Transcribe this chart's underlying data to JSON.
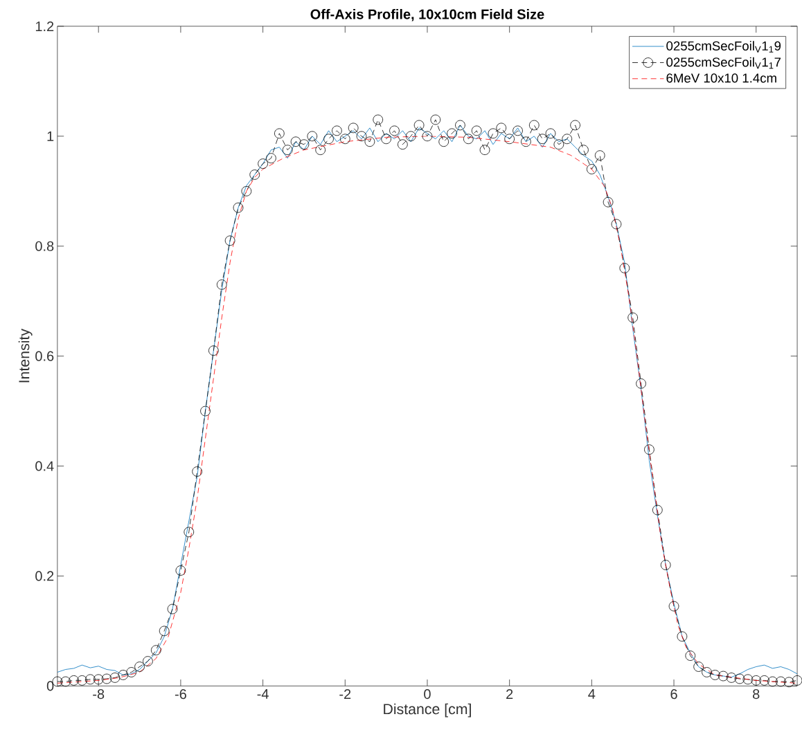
{
  "chart_data": {
    "type": "line",
    "title": "Off-Axis Profile, 10x10cm Field Size",
    "xlabel": "Distance [cm]",
    "ylabel": "Intensity",
    "xlim": [
      -9,
      9
    ],
    "ylim": [
      0,
      1.2
    ],
    "xticks": [
      -8,
      -6,
      -4,
      -2,
      0,
      2,
      4,
      6,
      8
    ],
    "yticks": [
      0,
      0.2,
      0.4,
      0.6,
      0.8,
      1,
      1.2
    ],
    "grid": false,
    "legend": "top right",
    "series": [
      {
        "name": "0255cmSecFoil$_{V}$1$_{1}$9",
        "color": "#0072bd",
        "marker": "none",
        "line_style": "solid",
        "x": [
          -9.0,
          -8.8,
          -8.6,
          -8.4,
          -8.2,
          -8.0,
          -7.8,
          -7.6,
          -7.4,
          -7.2,
          -7.0,
          -6.8,
          -6.6,
          -6.4,
          -6.2,
          -6.0,
          -5.8,
          -5.6,
          -5.4,
          -5.2,
          -5.0,
          -4.8,
          -4.6,
          -4.4,
          -4.2,
          -4.0,
          -3.8,
          -3.6,
          -3.4,
          -3.2,
          -3.0,
          -2.8,
          -2.6,
          -2.4,
          -2.2,
          -2.0,
          -1.8,
          -1.6,
          -1.4,
          -1.2,
          -1.0,
          -0.8,
          -0.6,
          -0.4,
          -0.2,
          0.0,
          0.2,
          0.4,
          0.6,
          0.8,
          1.0,
          1.2,
          1.4,
          1.6,
          1.8,
          2.0,
          2.2,
          2.4,
          2.6,
          2.8,
          3.0,
          3.2,
          3.4,
          3.6,
          3.8,
          4.0,
          4.2,
          4.4,
          4.6,
          4.8,
          5.0,
          5.2,
          5.4,
          5.6,
          5.8,
          6.0,
          6.2,
          6.4,
          6.6,
          6.8,
          7.0,
          7.2,
          7.4,
          7.6,
          7.8,
          8.0,
          8.2,
          8.4,
          8.6,
          8.8,
          9.0
        ],
        "values": [
          0.025,
          0.03,
          0.032,
          0.038,
          0.033,
          0.036,
          0.03,
          0.028,
          0.02,
          0.022,
          0.03,
          0.045,
          0.06,
          0.09,
          0.14,
          0.22,
          0.3,
          0.38,
          0.5,
          0.61,
          0.72,
          0.81,
          0.87,
          0.91,
          0.93,
          0.95,
          0.975,
          0.98,
          0.96,
          0.99,
          0.975,
          1.0,
          0.985,
          1.01,
          0.99,
          1.0,
          1.01,
          0.995,
          1.015,
          0.99,
          1.005,
          0.995,
          1.01,
          0.99,
          1.015,
          1.005,
          0.995,
          1.01,
          0.99,
          1.02,
          1.0,
          0.995,
          1.01,
          0.985,
          1.005,
          0.995,
          1.015,
          0.99,
          1.0,
          0.98,
          1.005,
          0.99,
          0.995,
          0.98,
          0.965,
          0.955,
          0.93,
          0.89,
          0.84,
          0.77,
          0.65,
          0.54,
          0.41,
          0.31,
          0.22,
          0.15,
          0.09,
          0.06,
          0.035,
          0.025,
          0.02,
          0.018,
          0.016,
          0.022,
          0.03,
          0.035,
          0.038,
          0.032,
          0.035,
          0.03,
          0.022
        ]
      },
      {
        "name": "0255cmSecFoil$_{V}$1$_{1}$7",
        "color": "#000000",
        "marker": "circle",
        "line_style": "dashed",
        "x": [
          -9.0,
          -8.8,
          -8.6,
          -8.4,
          -8.2,
          -8.0,
          -7.8,
          -7.6,
          -7.4,
          -7.2,
          -7.0,
          -6.8,
          -6.6,
          -6.4,
          -6.2,
          -6.0,
          -5.8,
          -5.6,
          -5.4,
          -5.2,
          -5.0,
          -4.8,
          -4.6,
          -4.4,
          -4.2,
          -4.0,
          -3.8,
          -3.6,
          -3.4,
          -3.2,
          -3.0,
          -2.8,
          -2.6,
          -2.4,
          -2.2,
          -2.0,
          -1.8,
          -1.6,
          -1.4,
          -1.2,
          -1.0,
          -0.8,
          -0.6,
          -0.4,
          -0.2,
          0.0,
          0.2,
          0.4,
          0.6,
          0.8,
          1.0,
          1.2,
          1.4,
          1.6,
          1.8,
          2.0,
          2.2,
          2.4,
          2.6,
          2.8,
          3.0,
          3.2,
          3.4,
          3.6,
          3.8,
          4.0,
          4.2,
          4.4,
          4.6,
          4.8,
          5.0,
          5.2,
          5.4,
          5.6,
          5.8,
          6.0,
          6.2,
          6.4,
          6.6,
          6.8,
          7.0,
          7.2,
          7.4,
          7.6,
          7.8,
          8.0,
          8.2,
          8.4,
          8.6,
          8.8,
          9.0
        ],
        "values": [
          0.008,
          0.008,
          0.01,
          0.01,
          0.012,
          0.012,
          0.013,
          0.015,
          0.02,
          0.025,
          0.035,
          0.045,
          0.065,
          0.1,
          0.14,
          0.21,
          0.28,
          0.39,
          0.5,
          0.61,
          0.73,
          0.81,
          0.87,
          0.9,
          0.93,
          0.95,
          0.96,
          1.005,
          0.975,
          0.99,
          0.985,
          1.0,
          0.975,
          0.995,
          1.01,
          0.995,
          1.015,
          1.0,
          0.99,
          1.03,
          0.995,
          1.01,
          0.985,
          1.0,
          1.02,
          1.0,
          1.03,
          0.99,
          1.005,
          1.02,
          0.995,
          1.01,
          0.975,
          1.005,
          1.015,
          0.995,
          1.01,
          0.99,
          1.02,
          0.995,
          1.005,
          0.985,
          0.995,
          1.02,
          0.975,
          0.94,
          0.965,
          0.88,
          0.84,
          0.76,
          0.67,
          0.55,
          0.43,
          0.32,
          0.22,
          0.145,
          0.09,
          0.055,
          0.035,
          0.025,
          0.02,
          0.018,
          0.015,
          0.013,
          0.012,
          0.01,
          0.01,
          0.008,
          0.008,
          0.007,
          0.01
        ]
      },
      {
        "name": "6MeV 10x10 1.4cm",
        "color": "#ff0000",
        "marker": "none",
        "line_style": "dashed",
        "x": [
          -9.0,
          -8.0,
          -7.5,
          -7.0,
          -6.6,
          -6.3,
          -6.0,
          -5.8,
          -5.6,
          -5.4,
          -5.2,
          -5.0,
          -4.8,
          -4.6,
          -4.4,
          -4.2,
          -4.0,
          -3.5,
          -3.0,
          -2.0,
          -1.0,
          0.0,
          1.0,
          2.0,
          3.0,
          3.5,
          4.0,
          4.3,
          4.5,
          4.7,
          4.9,
          5.1,
          5.3,
          5.5,
          5.7,
          5.9,
          6.1,
          6.3,
          6.6,
          7.0,
          7.5,
          8.0,
          9.0
        ],
        "values": [
          0.005,
          0.01,
          0.015,
          0.025,
          0.05,
          0.09,
          0.17,
          0.25,
          0.34,
          0.45,
          0.56,
          0.67,
          0.77,
          0.85,
          0.9,
          0.925,
          0.94,
          0.96,
          0.975,
          0.99,
          0.998,
          1.0,
          0.998,
          0.99,
          0.98,
          0.965,
          0.94,
          0.91,
          0.87,
          0.8,
          0.71,
          0.6,
          0.48,
          0.37,
          0.26,
          0.18,
          0.11,
          0.07,
          0.04,
          0.02,
          0.015,
          0.01,
          0.005
        ]
      }
    ]
  }
}
